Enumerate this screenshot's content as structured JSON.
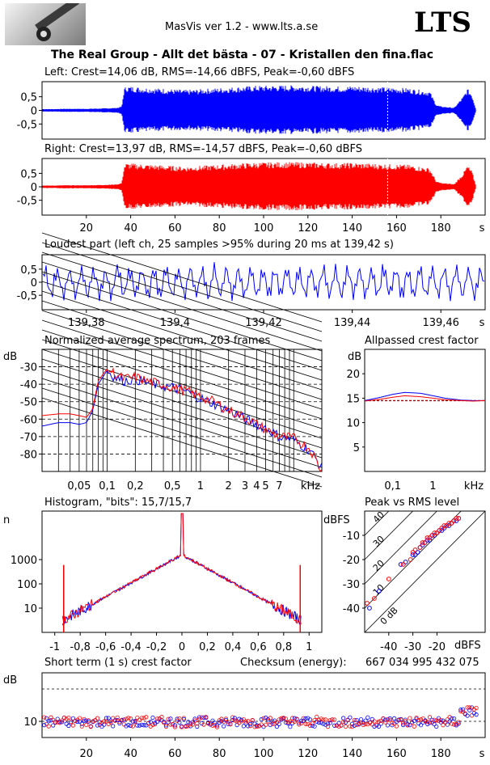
{
  "header": {
    "app_title": "MasVis ver 1.2 - www.lts.a.se",
    "logo_text": "LTS",
    "file_title": "The Real Group - Allt det bästa - 07 - Kristallen den fina.flac"
  },
  "colors": {
    "left": "#0000ff",
    "right": "#ff0000",
    "grid": "#000000",
    "axis": "#000000"
  },
  "chart_data": [
    {
      "id": "left-waveform",
      "type": "area",
      "title": "Left: Crest=14,06 dB, RMS=-14,66 dBFS, Peak=-0,60 dBFS",
      "ylim": [
        -1,
        1
      ],
      "yticks": [
        "0,5",
        "0",
        "-0,5"
      ],
      "xlim": [
        0,
        200
      ],
      "envelope_x": [
        0,
        5,
        10,
        15,
        20,
        25,
        30,
        34,
        36,
        37,
        38,
        45,
        55,
        65,
        75,
        85,
        95,
        105,
        115,
        125,
        135,
        140,
        145,
        155,
        165,
        175,
        178,
        180,
        186,
        190,
        192,
        194,
        196
      ],
      "envelope_y": [
        0.05,
        0.05,
        0.06,
        0.06,
        0.06,
        0.07,
        0.08,
        0.1,
        0.15,
        0.8,
        0.9,
        0.85,
        0.8,
        0.75,
        0.8,
        0.85,
        0.9,
        0.92,
        0.92,
        0.9,
        0.88,
        0.9,
        0.88,
        0.85,
        0.82,
        0.7,
        0.2,
        0.15,
        0.1,
        0.5,
        0.8,
        0.6,
        0.0
      ]
    },
    {
      "id": "right-waveform",
      "type": "area",
      "title": "Right: Crest=13,97 dB, RMS=-14,57 dBFS, Peak=-0,60 dBFS",
      "ylim": [
        -1,
        1
      ],
      "yticks": [
        "0,5",
        "0",
        "-0,5"
      ],
      "xlim": [
        0,
        200
      ],
      "xticks": [
        "20",
        "40",
        "60",
        "80",
        "100",
        "120",
        "140",
        "160",
        "180",
        "s"
      ],
      "envelope_x": [
        0,
        5,
        10,
        15,
        20,
        25,
        30,
        34,
        36,
        37,
        38,
        45,
        55,
        65,
        75,
        85,
        95,
        105,
        115,
        125,
        135,
        140,
        145,
        155,
        165,
        175,
        178,
        180,
        186,
        190,
        192,
        194,
        196
      ],
      "envelope_y": [
        0.05,
        0.05,
        0.06,
        0.06,
        0.06,
        0.07,
        0.08,
        0.1,
        0.15,
        0.8,
        0.88,
        0.85,
        0.8,
        0.75,
        0.8,
        0.85,
        0.9,
        0.92,
        0.92,
        0.9,
        0.88,
        0.9,
        0.88,
        0.85,
        0.82,
        0.7,
        0.2,
        0.15,
        0.1,
        0.5,
        0.8,
        0.6,
        0.0
      ]
    },
    {
      "id": "loudest-part",
      "type": "line",
      "title": "Loudest part (left  ch, 25 samples >95% during 20 ms at 139,42 s)",
      "ylim": [
        -1,
        1
      ],
      "yticks": [
        "0,5",
        "0",
        "-0,5"
      ],
      "xlim": [
        139.37,
        139.47
      ],
      "xticks": [
        "139,38",
        "139,4",
        "139,42",
        "139,44",
        "139,46",
        "s"
      ],
      "xtick_values": [
        139.38,
        139.4,
        139.42,
        139.44,
        139.46
      ]
    },
    {
      "id": "avg-spectrum",
      "type": "line",
      "title": "Normalized average spectrum, 203 frames",
      "ylabel": "dB",
      "ylim": [
        -90,
        -20
      ],
      "yticks": [
        "-30",
        "-40",
        "-50",
        "-60",
        "-70",
        "-80"
      ],
      "ytick_values": [
        -30,
        -40,
        -50,
        -60,
        -70,
        -80
      ],
      "xlim_khz": [
        0.02,
        20
      ],
      "xticks": [
        "0,05",
        "0,1",
        "0,2",
        "0,5",
        "1",
        "2",
        "3",
        "4",
        "5",
        "7",
        "kHz"
      ],
      "xtick_values": [
        0.05,
        0.1,
        0.2,
        0.5,
        1,
        2,
        3,
        4,
        5,
        7
      ],
      "series": [
        {
          "name": "",
          "color": "blue",
          "x": [
            0.02,
            0.03,
            0.04,
            0.05,
            0.06,
            0.07,
            0.08,
            0.1,
            0.12,
            0.15,
            0.2,
            0.3,
            0.4,
            0.5,
            0.7,
            1,
            1.5,
            2,
            3,
            4,
            5,
            7,
            10,
            15,
            20
          ],
          "y": [
            -64,
            -62,
            -62,
            -63,
            -62,
            -55,
            -40,
            -32,
            -36,
            -38,
            -37,
            -40,
            -41,
            -42,
            -44,
            -48,
            -52,
            -55,
            -60,
            -63,
            -65,
            -70,
            -72,
            -78,
            -88
          ]
        },
        {
          "name": "",
          "color": "red",
          "x": [
            0.02,
            0.03,
            0.04,
            0.05,
            0.06,
            0.07,
            0.08,
            0.1,
            0.12,
            0.15,
            0.2,
            0.3,
            0.4,
            0.5,
            0.7,
            1,
            1.5,
            2,
            3,
            4,
            5,
            7,
            10,
            15,
            20
          ],
          "y": [
            -58,
            -57,
            -57,
            -58,
            -59,
            -54,
            -38,
            -31,
            -34,
            -37,
            -36,
            -39,
            -40,
            -42,
            -44,
            -47,
            -51,
            -55,
            -59,
            -63,
            -66,
            -70,
            -71,
            -77,
            -90
          ]
        }
      ]
    },
    {
      "id": "allpassed-crest",
      "type": "line",
      "title": "Allpassed crest factor",
      "ylabel": "dB",
      "ylim": [
        0,
        25
      ],
      "yticks": [
        "20",
        "15",
        "10",
        "5"
      ],
      "ytick_values": [
        20,
        15,
        10,
        5
      ],
      "xticks": [
        "0,1",
        "1",
        "kHz"
      ],
      "xtick_values": [
        0.1,
        1
      ],
      "reference_line": 14.5,
      "series": [
        {
          "name": "",
          "color": "blue",
          "x": [
            0.02,
            0.05,
            0.1,
            0.2,
            0.5,
            1,
            2,
            5,
            10,
            20
          ],
          "y": [
            14.5,
            15.2,
            15.8,
            16.2,
            16.0,
            15.5,
            15.0,
            14.6,
            14.5,
            14.5
          ]
        },
        {
          "name": "",
          "color": "red",
          "x": [
            0.02,
            0.05,
            0.1,
            0.2,
            0.5,
            1,
            2,
            5,
            10,
            20
          ],
          "y": [
            14.4,
            14.8,
            15.2,
            15.5,
            15.3,
            15.0,
            14.7,
            14.5,
            14.4,
            14.5
          ]
        }
      ]
    },
    {
      "id": "histogram",
      "type": "line",
      "title": "Histogram, \"bits\": 15,7/15,7",
      "ylabel": "n",
      "yscale": "log",
      "ylim": [
        1,
        100000
      ],
      "yticks": [
        "1000",
        "100",
        "10"
      ],
      "ytick_values": [
        1000,
        100,
        10
      ],
      "xlim": [
        -1.1,
        1.1
      ],
      "xticks": [
        "-1",
        "-0,8",
        "-0,6",
        "-0,4",
        "-0,2",
        "0",
        "0,2",
        "0,4",
        "0,6",
        "0,8",
        "1"
      ],
      "xtick_values": [
        -1,
        -0.8,
        -0.6,
        -0.4,
        -0.2,
        0,
        0.2,
        0.4,
        0.6,
        0.8,
        1
      ]
    },
    {
      "id": "peak-vs-rms",
      "type": "scatter",
      "title": "Peak vs RMS level",
      "ylabel": "dBFS",
      "xlabel": "dBFS",
      "xlim": [
        -50,
        0
      ],
      "ylim": [
        -50,
        0
      ],
      "yticks": [
        "-10",
        "-20",
        "-30",
        "-40"
      ],
      "ytick_values": [
        -10,
        -20,
        -30,
        -40
      ],
      "xticks": [
        "-40",
        "-30",
        "-20"
      ],
      "xtick_values": [
        -40,
        -30,
        -20
      ],
      "diagonal_labels": [
        "40",
        "30",
        "20",
        "10",
        "0 dB"
      ],
      "diagonal_offsets": [
        40,
        30,
        20,
        10,
        0
      ],
      "series": [
        {
          "name": "",
          "color": "blue",
          "x": [
            -48,
            -44,
            -35,
            -33,
            -30,
            -29,
            -28,
            -27,
            -26,
            -25,
            -24,
            -23,
            -22,
            -21,
            -20,
            -19,
            -18,
            -17,
            -16,
            -15,
            -14,
            -13,
            -12,
            -11
          ],
          "y": [
            -40,
            -33,
            -22,
            -21,
            -18,
            -18,
            -17,
            -15,
            -14,
            -13,
            -12,
            -12,
            -10,
            -10,
            -9,
            -8,
            -8,
            -7,
            -6,
            -6,
            -5,
            -4,
            -4,
            -3
          ]
        },
        {
          "name": "",
          "color": "red",
          "x": [
            -49,
            -46,
            -40,
            -34,
            -31,
            -30,
            -29,
            -27,
            -26,
            -25,
            -24,
            -23,
            -22,
            -21,
            -20,
            -19,
            -18,
            -17,
            -16,
            -15,
            -14,
            -13,
            -12,
            -11
          ],
          "y": [
            -38,
            -36,
            -28,
            -22,
            -20,
            -17,
            -16,
            -15,
            -13,
            -13,
            -11,
            -11,
            -10,
            -9,
            -9,
            -8,
            -7,
            -6,
            -6,
            -5,
            -5,
            -4,
            -3,
            -3
          ]
        }
      ]
    },
    {
      "id": "short-term-crest",
      "type": "scatter",
      "title": "Short term (1 s) crest factor",
      "checksum_label": "Checksum (energy):",
      "checksum_value": "667 034 995 432 075",
      "ylabel": "dB",
      "ylim": [
        5,
        25
      ],
      "yticks": [
        "10"
      ],
      "ytick_values": [
        10
      ],
      "reference_lines": [
        20,
        10
      ],
      "xlim": [
        0,
        200
      ],
      "xticks": [
        "20",
        "40",
        "60",
        "80",
        "100",
        "120",
        "140",
        "160",
        "180",
        "s"
      ],
      "xtick_values": [
        20,
        40,
        60,
        80,
        100,
        120,
        140,
        160,
        180
      ]
    }
  ]
}
